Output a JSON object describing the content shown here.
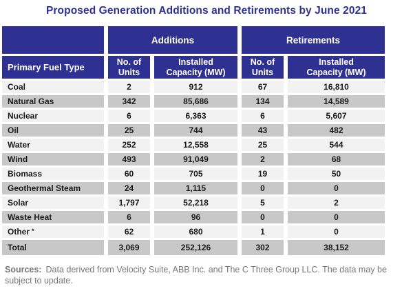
{
  "chart_data": {
    "type": "table",
    "title": "Proposed Generation Additions and Retirements by June 2021",
    "header": {
      "fuel_col": "Primary Fuel Type",
      "groups": [
        {
          "label": "Additions"
        },
        {
          "label": "Retirements"
        }
      ],
      "sub": [
        "No. of Units",
        "Installed Capacity (MW)"
      ]
    },
    "rows": [
      {
        "fuel": "Coal",
        "values": [
          "2",
          "912",
          "67",
          "16,810"
        ]
      },
      {
        "fuel": "Natural Gas",
        "values": [
          "342",
          "85,686",
          "134",
          "14,589"
        ]
      },
      {
        "fuel": "Nuclear",
        "values": [
          "6",
          "6,363",
          "6",
          "5,607"
        ]
      },
      {
        "fuel": "Oil",
        "values": [
          "25",
          "744",
          "43",
          "482"
        ]
      },
      {
        "fuel": "Water",
        "values": [
          "252",
          "12,558",
          "25",
          "544"
        ]
      },
      {
        "fuel": "Wind",
        "values": [
          "493",
          "91,049",
          "2",
          "68"
        ]
      },
      {
        "fuel": "Biomass",
        "values": [
          "60",
          "705",
          "19",
          "50"
        ]
      },
      {
        "fuel": "Geothermal Steam",
        "values": [
          "24",
          "1,115",
          "0",
          "0"
        ]
      },
      {
        "fuel": "Solar",
        "values": [
          "1,797",
          "52,218",
          "5",
          "2"
        ]
      },
      {
        "fuel": "Waste Heat",
        "values": [
          "6",
          "96",
          "0",
          "0"
        ]
      },
      {
        "fuel": "Other",
        "note": "*",
        "values": [
          "62",
          "680",
          "1",
          "0"
        ]
      }
    ],
    "total": {
      "label": "Total",
      "values": [
        "3,069",
        "252,126",
        "302",
        "38,152"
      ]
    }
  },
  "footer": {
    "label": "Sources:",
    "text": "Data derived from Velocity Suite, ABB Inc. and The C Three Group LLC.  The data may be subject to update."
  },
  "colors": {
    "header_blue": "#2E3192",
    "row_light": "#F2F2F2",
    "row_gray": "#C8C8C8",
    "title_navy": "#2E3192",
    "footer_gray": "#777777"
  }
}
